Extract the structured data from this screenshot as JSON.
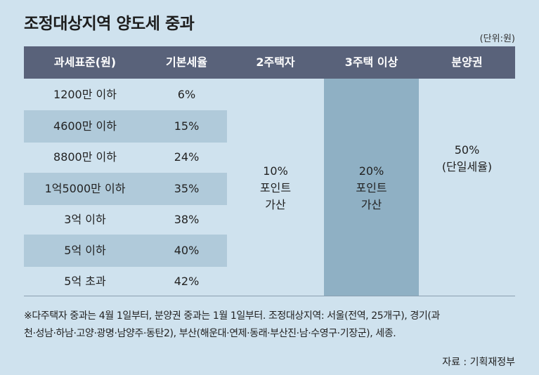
{
  "title": "조정대상지역 양도세 중과",
  "unit": "(단위:원)",
  "headers": [
    "과세표준(원)",
    "기본세율",
    "2주택자",
    "3주택 이상",
    "분양권"
  ],
  "rows": [
    {
      "base": "1200만 이하",
      "rate": "6%"
    },
    {
      "base": "4600만 이하",
      "rate": "15%"
    },
    {
      "base": "8800만 이하",
      "rate": "24%"
    },
    {
      "base": "1억5000만 이하",
      "rate": "35%"
    },
    {
      "base": "3억 이하",
      "rate": "38%"
    },
    {
      "base": "5억 이하",
      "rate": "40%"
    },
    {
      "base": "5억 초과",
      "rate": "42%"
    }
  ],
  "two_house": {
    "line1": "10%",
    "line2": "포인트",
    "line3": "가산"
  },
  "three_house": {
    "line1": "20%",
    "line2": "포인트",
    "line3": "가산"
  },
  "presale": {
    "line1": "50%",
    "line2": "(단일세율)"
  },
  "note_line1": "※다주택자 중과는 4월 1일부터, 분양권 중과는 1월 1일부터. 조정대상지역: 서울(전역, 25개구), 경기(과",
  "note_line2": "천·성남·하남·고양·광명·남양주·동탄2), 부산(해운대·연제·동래·부산진·남·수영구·기장군), 세종.",
  "source": "자료 : 기획재정부"
}
